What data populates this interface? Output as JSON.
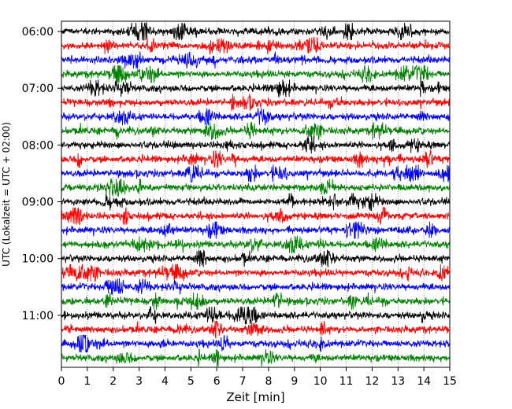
{
  "chart_data": {
    "type": "line",
    "title": "",
    "xlabel": "Zeit  [min]",
    "ylabel": "UTC (Lokalzeit = UTC + 02:00)",
    "xlim": [
      0,
      15
    ],
    "x_ticks": [
      0,
      1,
      2,
      3,
      4,
      5,
      6,
      7,
      8,
      9,
      10,
      11,
      12,
      13,
      14,
      15
    ],
    "y_tick_labels": [
      "06:00",
      "07:00",
      "08:00",
      "09:00",
      "10:00",
      "11:00"
    ],
    "trace_interval_min": 15,
    "start_time": "06:00",
    "end_time": "11:45",
    "colors": [
      "#000000",
      "#ff0000",
      "#0000ff",
      "#008000"
    ],
    "grid": true
  }
}
